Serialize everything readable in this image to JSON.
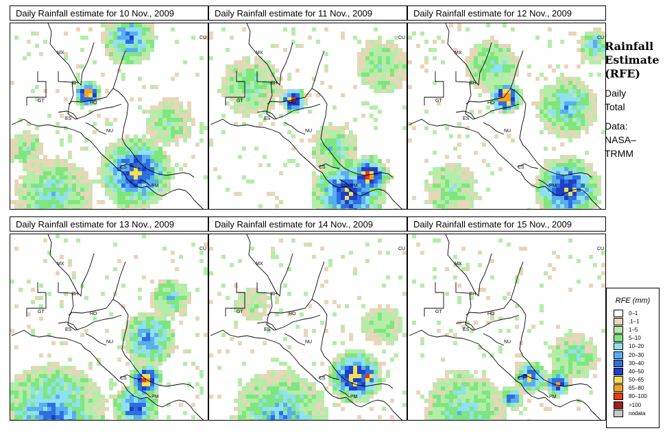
{
  "panels": [
    {
      "title": "Daily Rainfall estimate for  10 Nov., 2009"
    },
    {
      "title": "Daily Rainfall estimate for  11 Nov., 2009"
    },
    {
      "title": "Daily Rainfall estimate for  12 Nov., 2009"
    },
    {
      "title": "Daily Rainfall estimate for  13 Nov., 2009"
    },
    {
      "title": "Daily Rainfall estimate for  14 Nov., 2009"
    },
    {
      "title": "Daily Rainfall estimate for  15 Nov., 2009"
    }
  ],
  "country_labels": [
    "MX",
    "BH",
    "GT",
    "HO",
    "ES",
    "NU",
    "CS",
    "PM",
    "CU"
  ],
  "side": {
    "title_lines": [
      "Rainfall",
      "Estimate",
      "(RFE)"
    ],
    "daily_lines": [
      "Daily",
      "Total"
    ],
    "data_lines": [
      "Data:",
      "NASA–",
      "TRMM"
    ]
  },
  "legend": {
    "title": "RFE (mm)",
    "items": [
      {
        "label": "0–1",
        "color": "#ffffff"
      },
      {
        "label": ".1–1",
        "color": "#e8d6b8"
      },
      {
        "label": "1–5",
        "color": "#b4eda8"
      },
      {
        "label": "5–10",
        "color": "#7ee67e"
      },
      {
        "label": "10–20",
        "color": "#8fe0f0"
      },
      {
        "label": "20–30",
        "color": "#58aef0"
      },
      {
        "label": "30–40",
        "color": "#2e6fe0"
      },
      {
        "label": "40–50",
        "color": "#1f3fc8"
      },
      {
        "label": "50–65",
        "color": "#f4e052"
      },
      {
        "label": "65–80",
        "color": "#f5a020"
      },
      {
        "label": "80–100",
        "color": "#e83a10"
      },
      {
        "label": ">100",
        "color": "#a01e1e"
      },
      {
        "label": "nodata",
        "color": "#c8c8c8"
      }
    ]
  }
}
